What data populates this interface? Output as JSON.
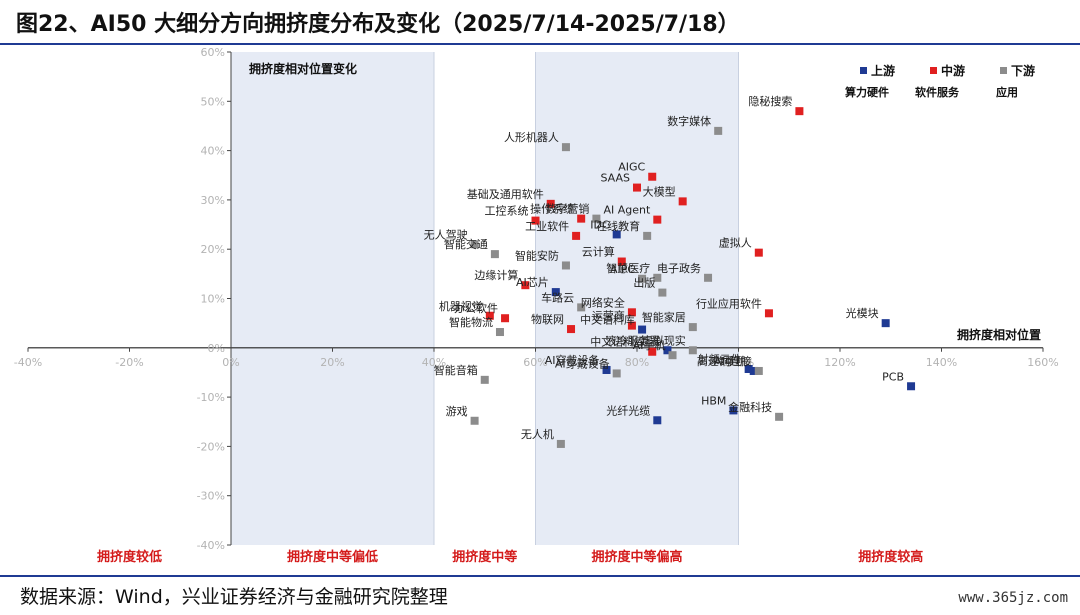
{
  "title": "图22、AI50 大细分方向拥挤度分布及变化（2025/7/14-2025/7/18）",
  "source": "数据来源：Wind，兴业证券经济与金融研究院整理",
  "watermark": "www.365jz.com",
  "chart_data": {
    "type": "scatter",
    "xlim": [
      -0.4,
      1.6
    ],
    "ylim": [
      -0.4,
      0.6
    ],
    "x_ticks": [
      "-40%",
      "-20%",
      "0%",
      "20%",
      "40%",
      "60%",
      "80%",
      "100%",
      "120%",
      "140%",
      "160%"
    ],
    "y_ticks": [
      "60%",
      "50%",
      "40%",
      "30%",
      "20%",
      "10%",
      "0%",
      "-10%",
      "-20%",
      "-30%",
      "-40%"
    ],
    "panel_title": "拥挤度相对位置变化",
    "axis_annotation": "拥挤度相对位置",
    "bands": [
      {
        "label": "拥挤度较低",
        "from": -0.4,
        "to": 0.0,
        "shaded": false
      },
      {
        "label": "拥挤度中等偏低",
        "from": 0.0,
        "to": 0.4,
        "shaded": true
      },
      {
        "label": "拥挤度中等",
        "from": 0.4,
        "to": 0.6,
        "shaded": false
      },
      {
        "label": "拥挤度中等偏高",
        "from": 0.6,
        "to": 1.0,
        "shaded": true
      },
      {
        "label": "拥挤度较高",
        "from": 1.0,
        "to": 1.6,
        "shaded": false
      }
    ],
    "legend_position": "top-right",
    "series": [
      {
        "name": "上游",
        "note": "算力硬件",
        "color": "#1f3a93",
        "points": [
          {
            "label": "AI芯片",
            "x": 0.64,
            "y": 0.113
          },
          {
            "label": "IDC",
            "x": 0.76,
            "y": 0.23
          },
          {
            "label": "中文语料库",
            "x": 0.81,
            "y": 0.037
          },
          {
            "label": "AI穿戴设备",
            "x": 0.74,
            "y": -0.045
          },
          {
            "label": "液冷服务器",
            "x": 0.86,
            "y": -0.005
          },
          {
            "label": "AI手机",
            "x": 1.03,
            "y": -0.047
          },
          {
            "label": "射频元件",
            "x": 1.02,
            "y": -0.043
          },
          {
            "label": "光纤光缆",
            "x": 0.84,
            "y": -0.147
          },
          {
            "label": "HBM",
            "x": 0.99,
            "y": -0.127
          },
          {
            "label": "光模块",
            "x": 1.29,
            "y": 0.05
          },
          {
            "label": "PCB",
            "x": 1.34,
            "y": -0.078
          }
        ]
      },
      {
        "name": "中游",
        "note": "软件服务",
        "color": "#e02020",
        "points": [
          {
            "label": "隐秘搜索",
            "x": 1.12,
            "y": 0.48
          },
          {
            "label": "AIGC",
            "x": 0.83,
            "y": 0.347
          },
          {
            "label": "SAAS",
            "x": 0.8,
            "y": 0.325
          },
          {
            "label": "大模型",
            "x": 0.89,
            "y": 0.297
          },
          {
            "label": "基础及通用软件",
            "x": 0.63,
            "y": 0.292
          },
          {
            "label": "操作系统",
            "x": 0.69,
            "y": 0.262
          },
          {
            "label": "工控系统",
            "x": 0.6,
            "y": 0.258
          },
          {
            "label": "AI Agent",
            "x": 0.84,
            "y": 0.26
          },
          {
            "label": "工业软件",
            "x": 0.68,
            "y": 0.227
          },
          {
            "label": "虚拟人",
            "x": 1.04,
            "y": 0.193
          },
          {
            "label": "云计算",
            "x": 0.77,
            "y": 0.175
          },
          {
            "label": "边缘计算",
            "x": 0.58,
            "y": 0.127
          },
          {
            "label": "机器视觉",
            "x": 0.51,
            "y": 0.065
          },
          {
            "label": "办公软件",
            "x": 0.54,
            "y": 0.06
          },
          {
            "label": "网络安全",
            "x": 0.79,
            "y": 0.072
          },
          {
            "label": "行业应用软件",
            "x": 1.06,
            "y": 0.07
          },
          {
            "label": "运营商",
            "x": 0.79,
            "y": 0.045
          },
          {
            "label": "物联网",
            "x": 0.67,
            "y": 0.038
          },
          {
            "label": "中文语料库",
            "x": 0.83,
            "y": -0.008
          }
        ]
      },
      {
        "name": "下游",
        "note": "应用",
        "color": "#8c8c8c",
        "points": [
          {
            "label": "数字媒体",
            "x": 0.96,
            "y": 0.44
          },
          {
            "label": "人形机器人",
            "x": 0.66,
            "y": 0.407
          },
          {
            "label": "数字营销",
            "x": 0.72,
            "y": 0.262
          },
          {
            "label": "在线教育",
            "x": 0.82,
            "y": 0.227
          },
          {
            "label": "无人驾驶",
            "x": 0.48,
            "y": 0.21
          },
          {
            "label": "智能交通",
            "x": 0.52,
            "y": 0.19
          },
          {
            "label": "智能安防",
            "x": 0.66,
            "y": 0.167
          },
          {
            "label": "智慧医疗",
            "x": 0.84,
            "y": 0.142
          },
          {
            "label": "电子政务",
            "x": 0.94,
            "y": 0.142
          },
          {
            "label": "AIPC",
            "x": 0.81,
            "y": 0.14
          },
          {
            "label": "出版",
            "x": 0.85,
            "y": 0.112
          },
          {
            "label": "车路云",
            "x": 0.69,
            "y": 0.082
          },
          {
            "label": "智能家居",
            "x": 0.91,
            "y": 0.042
          },
          {
            "label": "智能物流",
            "x": 0.53,
            "y": 0.032
          },
          {
            "label": "虚拟现实",
            "x": 0.91,
            "y": -0.005
          },
          {
            "label": "智能音箱",
            "x": 0.5,
            "y": -0.065
          },
          {
            "label": "游戏",
            "x": 0.48,
            "y": -0.148
          },
          {
            "label": "高速铜连接",
            "x": 1.04,
            "y": -0.047
          },
          {
            "label": "金融科技",
            "x": 1.08,
            "y": -0.14
          },
          {
            "label": "无人机",
            "x": 0.65,
            "y": -0.195
          },
          {
            "label": "AI穿戴设备",
            "x": 0.76,
            "y": -0.052
          },
          {
            "label": "AI手机",
            "x": 0.87,
            "y": -0.015
          }
        ]
      }
    ]
  }
}
